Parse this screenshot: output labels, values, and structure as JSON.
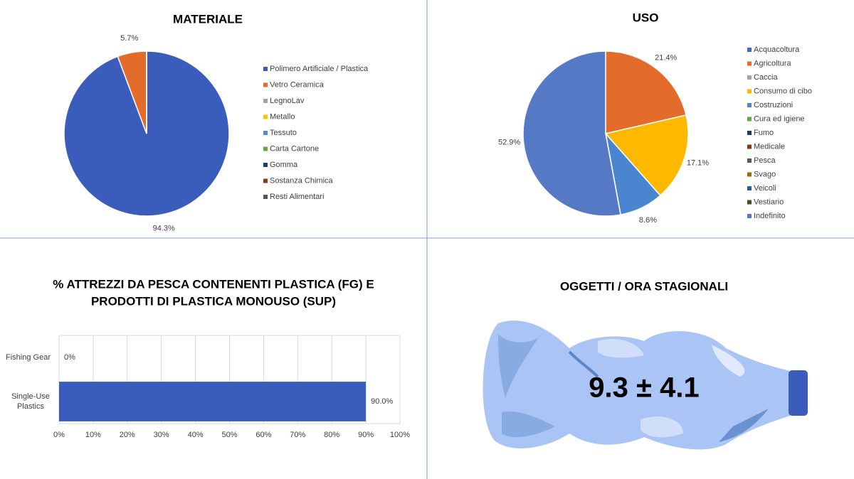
{
  "chart_data": [
    {
      "type": "pie",
      "title": "MATERIALE",
      "categories": [
        "Polimero Artificiale / Plastica",
        "Vetro Ceramica",
        "LegnoLav",
        "Metallo",
        "Tessuto",
        "Carta Cartone",
        "Gomma",
        "Sostanza Chimica",
        "Resti Alimentari"
      ],
      "values": [
        94.3,
        5.7,
        0,
        0,
        0,
        0,
        0,
        0,
        0
      ],
      "value_labels": [
        "94.3%",
        "5.7%",
        null,
        null,
        null,
        null,
        null,
        null,
        null
      ],
      "colors": [
        "#3a5dbc",
        "#e46c2a",
        "#a5a5a5",
        "#ffc000",
        "#4e8fd0",
        "#5fa843",
        "#1f3a7a",
        "#8b3a14",
        "#555555"
      ]
    },
    {
      "type": "pie",
      "title": "USO",
      "categories": [
        "Acquacoltura",
        "Agricoltura",
        "Caccia",
        "Consumo di cibo",
        "Costruzioni",
        "Cura ed igiene",
        "Fumo",
        "Medicale",
        "Pesca",
        "Svago",
        "Veicoli",
        "Vestiario",
        "Indefinito"
      ],
      "values": [
        0,
        21.4,
        0,
        17.1,
        8.6,
        0,
        0,
        0,
        0,
        0,
        0,
        0,
        52.9
      ],
      "value_labels": [
        null,
        "21.4%",
        null,
        "17.1%",
        "8.6%",
        null,
        null,
        null,
        null,
        null,
        null,
        null,
        "52.9%"
      ],
      "colors": [
        "#3a6fc4",
        "#e46c2a",
        "#a5a5a5",
        "#ffb800",
        "#4a86d0",
        "#5fa843",
        "#1f3864",
        "#843c0c",
        "#5a5a5a",
        "#947000",
        "#2a5aa0",
        "#375623",
        "#5679c5"
      ]
    },
    {
      "type": "bar",
      "orientation": "horizontal",
      "title": [
        "% ATTREZZI DA PESCA CONTENENTI PLASTICA (FG) E",
        "PRODOTTI DI PLASTICA MONOUSO (SUP)"
      ],
      "categories": [
        "Fishing Gear",
        "Single-Use Plastics"
      ],
      "values": [
        0,
        90
      ],
      "value_labels": [
        "0%",
        "90.0%"
      ],
      "color": "#3a5dbc",
      "xlim": [
        0,
        100
      ],
      "xticks": [
        {
          "value": 0,
          "label": "0%"
        },
        {
          "value": 10,
          "label": "10%"
        },
        {
          "value": 20,
          "label": "20%"
        },
        {
          "value": 30,
          "label": "30%"
        },
        {
          "value": 40,
          "label": "40%"
        },
        {
          "value": 50,
          "label": "50%"
        },
        {
          "value": 60,
          "label": "60%"
        },
        {
          "value": 70,
          "label": "70%"
        },
        {
          "value": 80,
          "label": "80%"
        },
        {
          "value": 90,
          "label": "90%"
        },
        {
          "value": 100,
          "label": "100%"
        }
      ],
      "grid": true
    }
  ],
  "stat_panel": {
    "title": "OGGETTI / ORA STAGIONALI",
    "value": "9.3 ± 4.1"
  }
}
